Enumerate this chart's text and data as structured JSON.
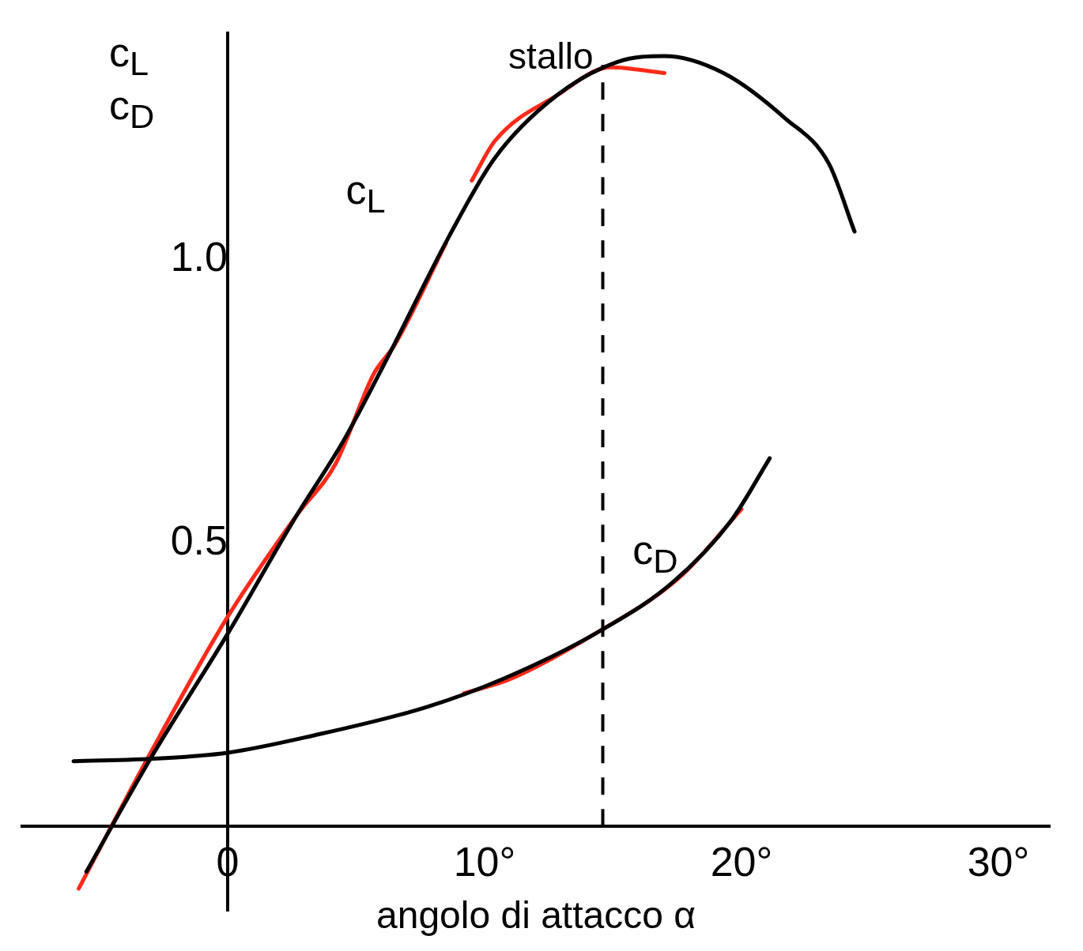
{
  "chart_data": {
    "type": "line",
    "xlabel": "angolo di attacco α",
    "ylabel": "c$_{L}$ c$_{D}$",
    "xlim": [
      -8,
      32
    ],
    "ylim": [
      -0.15,
      1.4
    ],
    "xticks": [
      {
        "value": 0,
        "label": "0"
      },
      {
        "value": 10,
        "label": "10°"
      },
      {
        "value": 20,
        "label": "20°"
      },
      {
        "value": 30,
        "label": "30°"
      }
    ],
    "yticks": [
      {
        "value": 0.5,
        "label": "0.5"
      },
      {
        "value": 1,
        "label": "1.0"
      }
    ],
    "grid": false,
    "legend": false,
    "marker": "none",
    "line_style": "solid",
    "ref_lines": [
      {
        "axis": "x",
        "value": 14.6,
        "label": "stallo",
        "line_style": "dashed",
        "color": "#000000"
      }
    ],
    "series": [
      {
        "name": "c$_{L}$",
        "color": "#000000",
        "x": [
          -5.5,
          -3,
          0,
          2.7,
          4.5,
          6.25,
          8.6,
          10.4,
          12.8,
          15.2,
          17,
          19.3,
          21.7,
          23.4,
          24.4
        ],
        "values": [
          -0.08,
          0.12,
          0.34,
          0.55,
          0.68,
          0.83,
          1.04,
          1.18,
          1.29,
          1.35,
          1.36,
          1.33,
          1.25,
          1.17,
          1.05
        ]
      },
      {
        "name": "c$_{D}$",
        "color": "#000000",
        "x": [
          -6,
          -2.7,
          0,
          3.3,
          7.7,
          10.7,
          14.3,
          17.3,
          19.6,
          21.1
        ],
        "values": [
          0.115,
          0.12,
          0.13,
          0.16,
          0.21,
          0.26,
          0.34,
          0.43,
          0.54,
          0.65
        ]
      },
      {
        "color": "#ff2a1a",
        "x": [
          -5.8,
          -3,
          0,
          2.7,
          4.2,
          5.7,
          6.5,
          8.5
        ],
        "values": [
          -0.11,
          0.13,
          0.37,
          0.55,
          0.64,
          0.8,
          0.85,
          1.03
        ]
      },
      {
        "color": "#ff2a1a",
        "x": [
          9.5,
          10.4,
          12.8,
          14.9,
          17
        ],
        "values": [
          1.14,
          1.21,
          1.29,
          1.34,
          1.33
        ]
      },
      {
        "color": "#ff2a1a",
        "x": [
          9.2,
          11,
          14.3,
          17.6,
          20
        ],
        "values": [
          0.235,
          0.26,
          0.34,
          0.44,
          0.56
        ]
      }
    ]
  }
}
